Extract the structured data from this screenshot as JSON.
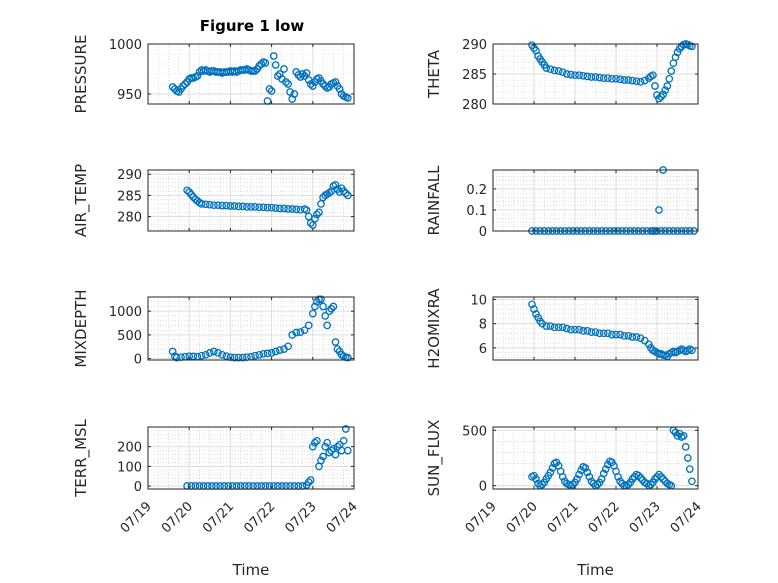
{
  "figure": {
    "title": "Figure 1 low",
    "marker_color": "#0072bd",
    "grid": "major and minor",
    "x_tick_labels": [
      "07/19",
      "07/20",
      "07/21",
      "07/22",
      "07/23",
      "07/24"
    ],
    "xlabel": "Time"
  },
  "chart_data": [
    {
      "type": "scatter",
      "ylabel": "PRESSURE",
      "xlim": [
        "07/19",
        "07/24"
      ],
      "ylim": [
        940,
        1000
      ],
      "yticks": [
        950,
        1000
      ],
      "x_day": [
        0.6,
        0.65,
        0.7,
        0.75,
        0.8,
        0.85,
        0.9,
        0.95,
        1.0,
        1.05,
        1.1,
        1.15,
        1.2,
        1.25,
        1.3,
        1.35,
        1.4,
        1.45,
        1.5,
        1.55,
        1.6,
        1.65,
        1.7,
        1.75,
        1.8,
        1.85,
        1.9,
        1.95,
        2.0,
        2.05,
        2.1,
        2.15,
        2.2,
        2.25,
        2.3,
        2.35,
        2.4,
        2.45,
        2.5,
        2.55,
        2.6,
        2.65,
        2.7,
        2.75,
        2.8,
        2.85,
        2.9,
        2.95,
        3.0,
        3.05,
        3.1,
        3.15,
        3.2,
        3.25,
        3.3,
        3.35,
        3.4,
        3.45,
        3.5,
        3.55,
        3.6,
        3.65,
        3.7,
        3.75,
        3.8,
        3.85,
        3.9,
        3.95,
        4.0,
        4.05,
        4.1,
        4.15,
        4.2,
        4.25,
        4.3,
        4.35,
        4.4,
        4.45,
        4.5,
        4.55,
        4.6,
        4.65,
        4.7,
        4.75,
        4.8,
        4.85
      ],
      "y": [
        957,
        955,
        953,
        952,
        955,
        958,
        960,
        962,
        965,
        966,
        966,
        967,
        968,
        972,
        974,
        973,
        974,
        973,
        972,
        973,
        973,
        972,
        972,
        972,
        971,
        972,
        972,
        972,
        973,
        972,
        973,
        972,
        973,
        974,
        974,
        974,
        975,
        974,
        973,
        973,
        973,
        975,
        978,
        980,
        982,
        981,
        943,
        955,
        953,
        988,
        979,
        968,
        970,
        965,
        975,
        962,
        960,
        952,
        945,
        950,
        972,
        969,
        967,
        970,
        968,
        971,
        964,
        960,
        958,
        962,
        965,
        966,
        963,
        960,
        958,
        956,
        957,
        960,
        961,
        962,
        958,
        955,
        950,
        948,
        947,
        946
      ],
      "note": "approx"
    },
    {
      "type": "scatter",
      "ylabel": "THETA",
      "xlim": [
        "07/19",
        "07/24"
      ],
      "ylim": [
        280,
        290
      ],
      "yticks": [
        280,
        285,
        290
      ],
      "x_day": [
        0.95,
        1.0,
        1.05,
        1.1,
        1.15,
        1.2,
        1.25,
        1.3,
        1.4,
        1.5,
        1.6,
        1.7,
        1.8,
        1.9,
        2.0,
        2.1,
        2.2,
        2.3,
        2.4,
        2.5,
        2.6,
        2.7,
        2.8,
        2.9,
        3.0,
        3.1,
        3.2,
        3.3,
        3.4,
        3.5,
        3.6,
        3.7,
        3.8,
        3.85,
        3.9,
        3.95,
        4.0,
        4.05,
        4.1,
        4.15,
        4.2,
        4.25,
        4.3,
        4.35,
        4.4,
        4.45,
        4.5,
        4.55,
        4.6,
        4.65,
        4.7,
        4.75,
        4.8,
        4.85
      ],
      "y": [
        289.8,
        289.3,
        288.9,
        288.0,
        287.5,
        287.0,
        286.5,
        286.0,
        285.8,
        285.6,
        285.5,
        285.3,
        285.0,
        284.9,
        284.8,
        284.8,
        284.7,
        284.6,
        284.5,
        284.5,
        284.4,
        284.3,
        284.3,
        284.2,
        284.2,
        284.1,
        284.0,
        284.0,
        283.9,
        283.8,
        283.7,
        283.9,
        284.3,
        284.6,
        284.8,
        283.0,
        281.5,
        280.9,
        281.2,
        281.6,
        282.3,
        283.0,
        284.2,
        285.5,
        286.8,
        287.8,
        288.6,
        289.2,
        289.6,
        289.9,
        290.0,
        289.9,
        289.7,
        289.6
      ]
    },
    {
      "type": "scatter",
      "ylabel": "AIR_TEMP",
      "xlim": [
        "07/19",
        "07/24"
      ],
      "ylim": [
        276.6,
        291
      ],
      "yticks": [
        280,
        285,
        290
      ],
      "x_day": [
        0.95,
        1.0,
        1.05,
        1.1,
        1.15,
        1.2,
        1.25,
        1.3,
        1.4,
        1.5,
        1.6,
        1.7,
        1.8,
        1.9,
        2.0,
        2.1,
        2.2,
        2.3,
        2.4,
        2.5,
        2.6,
        2.7,
        2.8,
        2.9,
        3.0,
        3.1,
        3.2,
        3.3,
        3.4,
        3.5,
        3.6,
        3.7,
        3.8,
        3.85,
        3.9,
        3.95,
        4.0,
        4.05,
        4.1,
        4.15,
        4.2,
        4.25,
        4.3,
        4.35,
        4.4,
        4.45,
        4.5,
        4.55,
        4.6,
        4.65,
        4.7,
        4.75,
        4.8,
        4.85
      ],
      "y": [
        286.2,
        285.8,
        285.2,
        284.6,
        284.1,
        283.7,
        283.3,
        283.0,
        282.9,
        282.8,
        282.7,
        282.7,
        282.6,
        282.6,
        282.5,
        282.5,
        282.4,
        282.4,
        282.3,
        282.3,
        282.3,
        282.2,
        282.2,
        282.1,
        282.1,
        282.0,
        281.9,
        281.9,
        281.8,
        281.8,
        281.7,
        281.6,
        281.8,
        281.5,
        280.0,
        278.5,
        278.0,
        279.5,
        280.5,
        281.0,
        283.0,
        284.5,
        285.0,
        285.3,
        285.6,
        286.0,
        287.2,
        287.5,
        286.5,
        285.8,
        286.7,
        286.0,
        285.5,
        285.0
      ]
    },
    {
      "type": "scatter",
      "ylabel": "RAINFALL",
      "xlim": [
        "07/19",
        "07/24"
      ],
      "ylim": [
        0,
        0.29
      ],
      "yticks": [
        0,
        0.1,
        0.2
      ],
      "x_day": [
        0.95,
        1.05,
        1.15,
        1.25,
        1.35,
        1.45,
        1.55,
        1.65,
        1.75,
        1.85,
        1.95,
        2.05,
        2.15,
        2.25,
        2.35,
        2.45,
        2.55,
        2.65,
        2.75,
        2.85,
        2.95,
        3.05,
        3.15,
        3.25,
        3.35,
        3.45,
        3.55,
        3.65,
        3.75,
        3.85,
        3.9,
        3.95,
        4.0,
        4.05,
        4.1,
        4.15,
        4.2,
        4.3,
        4.4,
        4.5,
        4.6,
        4.7,
        4.8,
        4.9
      ],
      "y": [
        0,
        0,
        0,
        0,
        0,
        0,
        0,
        0,
        0,
        0,
        0,
        0,
        0,
        0,
        0,
        0,
        0,
        0,
        0,
        0,
        0,
        0,
        0,
        0,
        0,
        0,
        0,
        0,
        0,
        0,
        0,
        0,
        0,
        0.1,
        0,
        0.29,
        0,
        0,
        0,
        0,
        0,
        0,
        0,
        0
      ]
    },
    {
      "type": "scatter",
      "ylabel": "MIXDEPTH",
      "xlim": [
        "07/19",
        "07/24"
      ],
      "ylim": [
        -30,
        1300
      ],
      "yticks": [
        0,
        500,
        1000
      ],
      "x_day": [
        0.6,
        0.65,
        0.7,
        0.8,
        0.9,
        1.0,
        1.1,
        1.2,
        1.3,
        1.4,
        1.5,
        1.6,
        1.7,
        1.8,
        1.9,
        2.0,
        2.1,
        2.2,
        2.3,
        2.4,
        2.5,
        2.6,
        2.7,
        2.8,
        2.9,
        3.0,
        3.1,
        3.2,
        3.3,
        3.4,
        3.5,
        3.6,
        3.7,
        3.8,
        3.9,
        4.0,
        4.05,
        4.1,
        4.15,
        4.2,
        4.25,
        4.3,
        4.35,
        4.4,
        4.45,
        4.5,
        4.55,
        4.6,
        4.65,
        4.7,
        4.75,
        4.8,
        4.85
      ],
      "y": [
        150,
        50,
        20,
        30,
        40,
        50,
        45,
        40,
        60,
        80,
        120,
        150,
        120,
        80,
        50,
        30,
        20,
        20,
        20,
        30,
        40,
        60,
        80,
        100,
        110,
        120,
        150,
        180,
        200,
        260,
        500,
        550,
        560,
        600,
        700,
        950,
        1100,
        1200,
        1250,
        1250,
        1100,
        900,
        700,
        1000,
        1050,
        1100,
        350,
        200,
        150,
        80,
        50,
        30,
        20
      ]
    },
    {
      "type": "scatter",
      "ylabel": "H2OMIXRA",
      "xlim": [
        "07/19",
        "07/24"
      ],
      "ylim": [
        5,
        10.2
      ],
      "yticks": [
        6,
        8,
        10
      ],
      "x_day": [
        0.95,
        1.0,
        1.05,
        1.1,
        1.15,
        1.2,
        1.3,
        1.4,
        1.5,
        1.6,
        1.7,
        1.8,
        1.9,
        2.0,
        2.1,
        2.2,
        2.3,
        2.4,
        2.5,
        2.6,
        2.7,
        2.8,
        2.9,
        3.0,
        3.1,
        3.2,
        3.3,
        3.4,
        3.5,
        3.6,
        3.7,
        3.8,
        3.85,
        3.9,
        3.95,
        4.0,
        4.05,
        4.1,
        4.15,
        4.2,
        4.25,
        4.3,
        4.35,
        4.4,
        4.45,
        4.5,
        4.55,
        4.6,
        4.65,
        4.7,
        4.75,
        4.8,
        4.85
      ],
      "y": [
        9.6,
        9.2,
        8.8,
        8.5,
        8.2,
        8.0,
        7.8,
        7.8,
        7.7,
        7.7,
        7.7,
        7.6,
        7.5,
        7.5,
        7.5,
        7.4,
        7.4,
        7.3,
        7.3,
        7.2,
        7.2,
        7.2,
        7.1,
        7.1,
        7.1,
        7.0,
        7.0,
        6.9,
        6.9,
        6.8,
        6.6,
        6.3,
        6.0,
        5.8,
        5.7,
        5.6,
        5.5,
        5.5,
        5.4,
        5.4,
        5.3,
        5.5,
        5.6,
        5.7,
        5.6,
        5.7,
        5.8,
        5.9,
        5.8,
        5.7,
        5.8,
        5.9,
        5.8
      ]
    },
    {
      "type": "scatter",
      "ylabel": "TERR_MSL",
      "xlim": [
        "07/19",
        "07/24"
      ],
      "ylim": [
        -15,
        300
      ],
      "yticks": [
        0,
        100,
        200
      ],
      "x_day": [
        0.95,
        1.05,
        1.15,
        1.25,
        1.35,
        1.45,
        1.55,
        1.65,
        1.75,
        1.85,
        1.95,
        2.05,
        2.15,
        2.25,
        2.35,
        2.45,
        2.55,
        2.65,
        2.75,
        2.85,
        2.95,
        3.05,
        3.15,
        3.25,
        3.35,
        3.45,
        3.55,
        3.65,
        3.75,
        3.85,
        3.9,
        3.95,
        4.0,
        4.05,
        4.1,
        4.15,
        4.2,
        4.25,
        4.3,
        4.35,
        4.4,
        4.45,
        4.5,
        4.55,
        4.6,
        4.65,
        4.7,
        4.75,
        4.8,
        4.85
      ],
      "y": [
        0,
        0,
        0,
        0,
        0,
        0,
        0,
        0,
        0,
        0,
        0,
        0,
        0,
        0,
        0,
        0,
        0,
        0,
        0,
        0,
        0,
        0,
        0,
        0,
        0,
        0,
        0,
        0,
        0,
        5,
        20,
        30,
        200,
        220,
        230,
        100,
        130,
        150,
        200,
        220,
        170,
        180,
        190,
        160,
        200,
        210,
        180,
        230,
        290,
        180
      ]
    },
    {
      "type": "scatter",
      "ylabel": "SUN_FLUX",
      "xlim": [
        "07/19",
        "07/24"
      ],
      "ylim": [
        -30,
        530
      ],
      "yticks": [
        0,
        500
      ],
      "x_day": [
        0.95,
        1.0,
        1.05,
        1.1,
        1.15,
        1.2,
        1.25,
        1.3,
        1.35,
        1.4,
        1.45,
        1.5,
        1.55,
        1.6,
        1.65,
        1.7,
        1.75,
        1.8,
        1.85,
        1.9,
        1.95,
        2.0,
        2.05,
        2.1,
        2.15,
        2.2,
        2.25,
        2.3,
        2.35,
        2.4,
        2.45,
        2.5,
        2.55,
        2.6,
        2.65,
        2.7,
        2.75,
        2.8,
        2.85,
        2.9,
        2.95,
        3.0,
        3.05,
        3.1,
        3.15,
        3.2,
        3.25,
        3.3,
        3.35,
        3.4,
        3.45,
        3.5,
        3.55,
        3.6,
        3.65,
        3.7,
        3.75,
        3.8,
        3.85,
        3.9,
        3.95,
        4.0,
        4.05,
        4.1,
        4.15,
        4.2,
        4.25,
        4.3,
        4.35,
        4.4,
        4.45,
        4.5,
        4.55,
        4.6,
        4.65,
        4.7,
        4.75,
        4.8,
        4.85
      ],
      "y": [
        80,
        90,
        60,
        20,
        0,
        10,
        30,
        60,
        90,
        120,
        160,
        200,
        210,
        180,
        130,
        80,
        40,
        20,
        10,
        0,
        10,
        30,
        60,
        100,
        140,
        170,
        160,
        120,
        80,
        40,
        20,
        0,
        10,
        30,
        60,
        110,
        150,
        190,
        220,
        210,
        180,
        130,
        80,
        40,
        20,
        0,
        0,
        10,
        30,
        60,
        80,
        100,
        90,
        70,
        50,
        30,
        20,
        0,
        10,
        30,
        60,
        80,
        100,
        80,
        60,
        40,
        20,
        10,
        0,
        500,
        480,
        450,
        470,
        440,
        450,
        350,
        250,
        150,
        40
      ]
    }
  ]
}
